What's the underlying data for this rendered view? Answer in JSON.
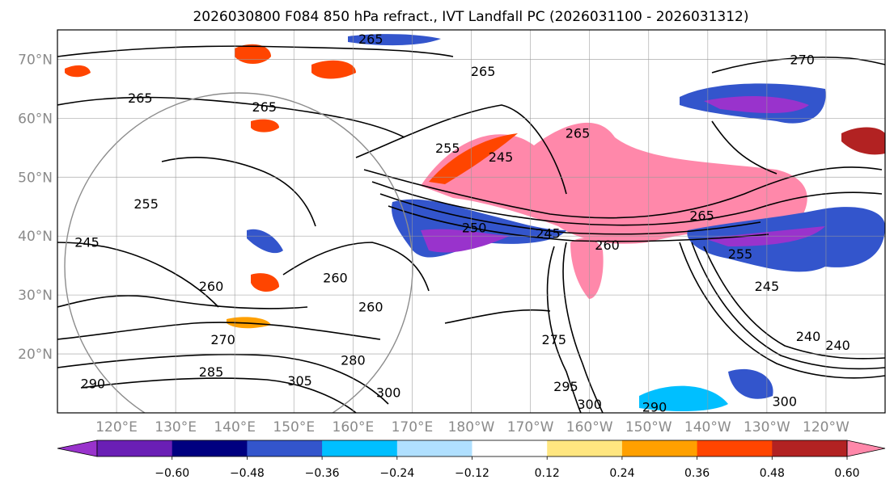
{
  "title": "2026030800 F084 850 hPa refract., IVT Landfall PC (2026031100 - 2026031312)",
  "map": {
    "projection": "PlateCarree",
    "lon_range": [
      110,
      250
    ],
    "lat_range": [
      10,
      75
    ],
    "lat_ticks": [
      {
        "lat": 70,
        "label": "70°N"
      },
      {
        "lat": 60,
        "label": "60°N"
      },
      {
        "lat": 50,
        "label": "50°N"
      },
      {
        "lat": 40,
        "label": "40°N"
      },
      {
        "lat": 30,
        "label": "30°N"
      },
      {
        "lat": 20,
        "label": "20°N"
      }
    ],
    "lon_ticks": [
      {
        "lon": 120,
        "label": "120°E"
      },
      {
        "lon": 130,
        "label": "130°E"
      },
      {
        "lon": 140,
        "label": "140°E"
      },
      {
        "lon": 150,
        "label": "150°E"
      },
      {
        "lon": 160,
        "label": "160°E"
      },
      {
        "lon": 170,
        "label": "170°E"
      },
      {
        "lon": 180,
        "label": "180°W"
      },
      {
        "lon": 190,
        "label": "170°W"
      },
      {
        "lon": 200,
        "label": "160°W"
      },
      {
        "lon": 210,
        "label": "150°W"
      },
      {
        "lon": 220,
        "label": "140°W"
      },
      {
        "lon": 230,
        "label": "130°W"
      },
      {
        "lon": 240,
        "label": "120°W"
      }
    ]
  },
  "contour_labels": [
    {
      "text": "265",
      "lon": 163,
      "lat": 73.5
    },
    {
      "text": "265",
      "lon": 124,
      "lat": 63.5
    },
    {
      "text": "265",
      "lon": 145,
      "lat": 62
    },
    {
      "text": "265",
      "lon": 182,
      "lat": 68
    },
    {
      "text": "265",
      "lon": 198,
      "lat": 57.5
    },
    {
      "text": "270",
      "lon": 236,
      "lat": 70
    },
    {
      "text": "255",
      "lon": 176,
      "lat": 55
    },
    {
      "text": "245",
      "lon": 185,
      "lat": 53.5
    },
    {
      "text": "255",
      "lon": 125,
      "lat": 45.5
    },
    {
      "text": "250",
      "lon": 180.5,
      "lat": 41.5
    },
    {
      "text": "245",
      "lon": 193,
      "lat": 40.5
    },
    {
      "text": "260",
      "lon": 203,
      "lat": 38.5
    },
    {
      "text": "265",
      "lon": 219,
      "lat": 43.5
    },
    {
      "text": "255",
      "lon": 225.5,
      "lat": 37
    },
    {
      "text": "245",
      "lon": 230,
      "lat": 31.5
    },
    {
      "text": "240",
      "lon": 237,
      "lat": 23
    },
    {
      "text": "240",
      "lon": 242,
      "lat": 21.5
    },
    {
      "text": "245",
      "lon": 115,
      "lat": 39
    },
    {
      "text": "260",
      "lon": 136,
      "lat": 31.5
    },
    {
      "text": "260",
      "lon": 157,
      "lat": 33
    },
    {
      "text": "260",
      "lon": 163,
      "lat": 28
    },
    {
      "text": "270",
      "lon": 138,
      "lat": 22.5
    },
    {
      "text": "280",
      "lon": 160,
      "lat": 19
    },
    {
      "text": "285",
      "lon": 136,
      "lat": 17
    },
    {
      "text": "305",
      "lon": 151,
      "lat": 15.5
    },
    {
      "text": "300",
      "lon": 166,
      "lat": 13.5
    },
    {
      "text": "275",
      "lon": 194,
      "lat": 22.5
    },
    {
      "text": "295",
      "lon": 196,
      "lat": 14.5
    },
    {
      "text": "300",
      "lon": 200,
      "lat": 11.5
    },
    {
      "text": "300",
      "lon": 233,
      "lat": 12
    },
    {
      "text": "290",
      "lon": 211,
      "lat": 11
    },
    {
      "text": "290",
      "lon": 116,
      "lat": 15
    }
  ],
  "colorbar": {
    "ticks": [
      "−0.60",
      "−0.48",
      "−0.36",
      "−0.24",
      "−0.12",
      "0.12",
      "0.24",
      "0.36",
      "0.48",
      "0.60"
    ],
    "colors": [
      "#9933cc",
      "#6a1fb5",
      "#000080",
      "#3355cc",
      "#00bfff",
      "#b0e0ff",
      "#ffffff",
      "#ffe680",
      "#ffa000",
      "#ff4500",
      "#b22222",
      "#ff88aa"
    ]
  }
}
